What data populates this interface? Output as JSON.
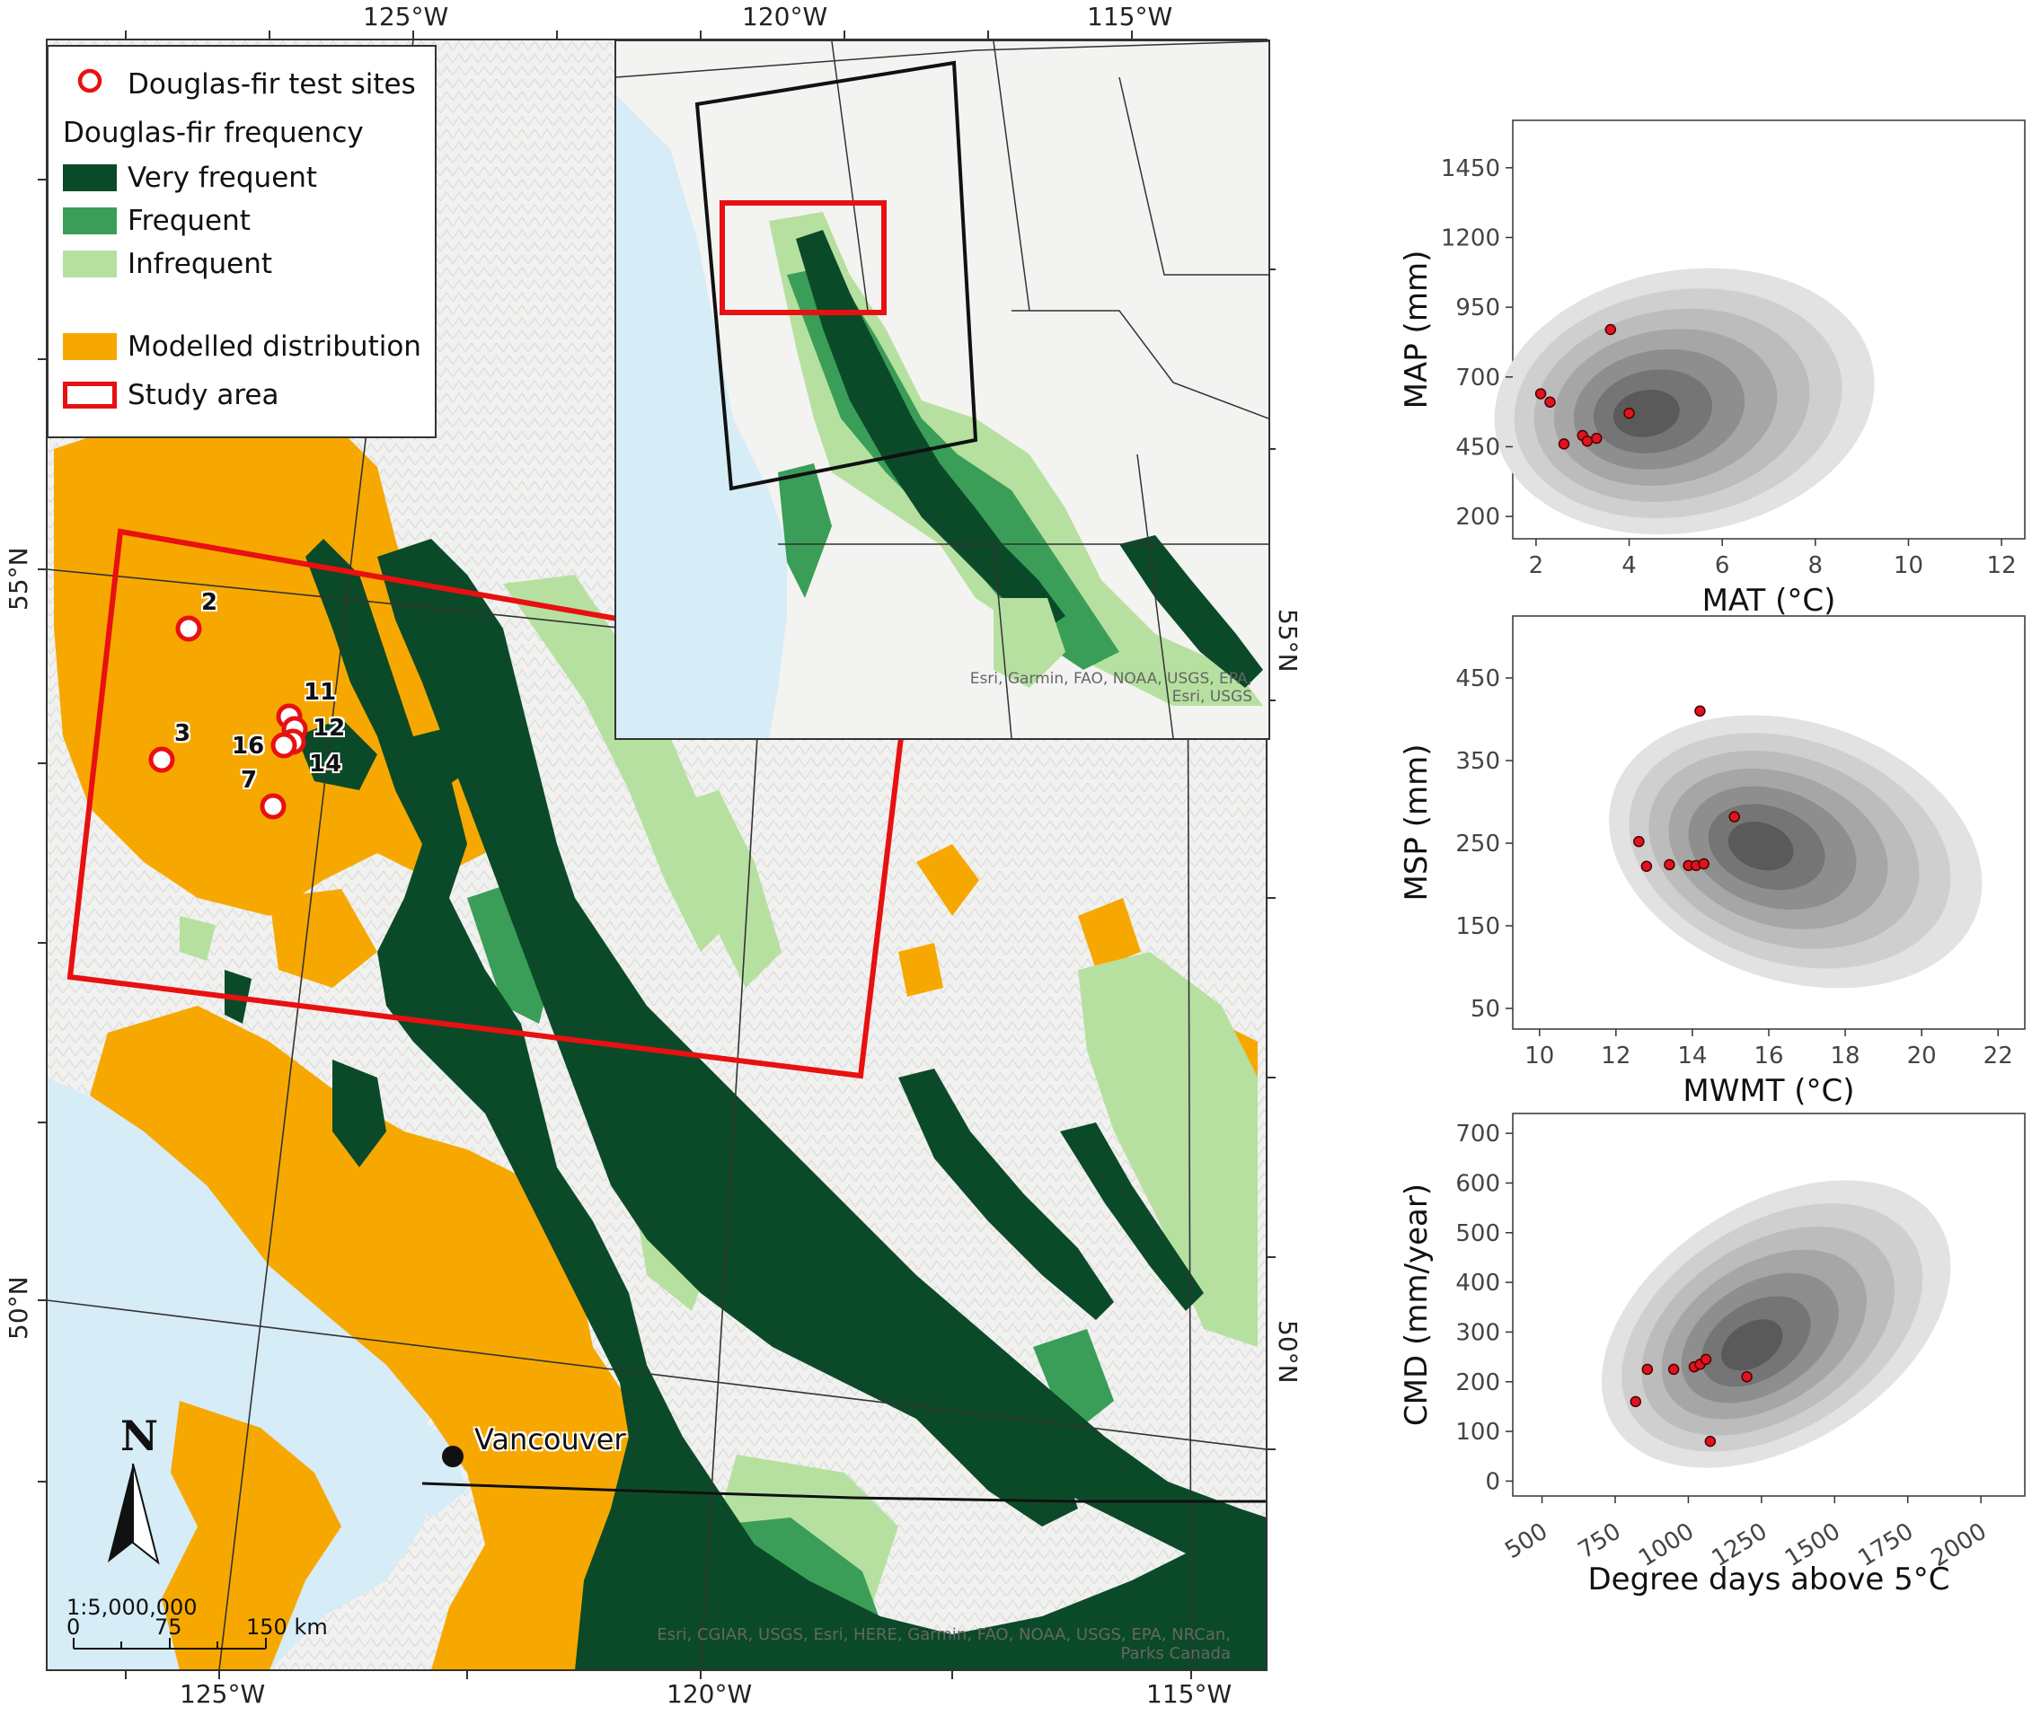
{
  "map": {
    "top_coords": [
      "125°W",
      "120°W",
      "115°W"
    ],
    "bottom_coords": [
      "125°W",
      "120°W",
      "115°W"
    ],
    "left_coords": [
      "55°N",
      "50°N"
    ],
    "right_coords": [
      "55°N",
      "50°N"
    ],
    "legend": {
      "test_sites": "Douglas-fir test sites",
      "frequency_title": "Douglas-fir frequency",
      "very_frequent": "Very frequent",
      "frequent": "Frequent",
      "infrequent": "Infrequent",
      "modelled": "Modelled distribution",
      "study_area": "Study area"
    },
    "colors": {
      "very_frequent": "#0b4a28",
      "frequent": "#3a9e58",
      "infrequent": "#b6e0a0",
      "modelled": "#f7a800",
      "study_area": "#e81010",
      "water": "#d6ecf6",
      "land": "#f1f1ef"
    },
    "sites": [
      "2",
      "3",
      "7",
      "11",
      "12",
      "14",
      "16"
    ],
    "city": "Vancouver",
    "north": "N",
    "scale": {
      "ratio": "1:5,000,000",
      "ticks": [
        "0",
        "75",
        "150 km"
      ]
    },
    "inset_attribution": [
      "Esri, Garmin, FAO, NOAA, USGS, EPA,",
      "Esri, USGS"
    ],
    "main_attribution": [
      "Esri, CGIAR, USGS, Esri, HERE, Garmin, FAO, NOAA, USGS, EPA, NRCan,",
      "Parks Canada"
    ],
    "icons": [
      "north-arrow-icon",
      "site-circle-icon",
      "city-dot-icon"
    ]
  },
  "chart_data": [
    {
      "type": "scatter",
      "overlay": "density-contours",
      "xlabel": "MAT (°C)",
      "ylabel": "MAP (mm)",
      "xlim": [
        1.5,
        12.5
      ],
      "ylim": [
        120,
        1620
      ],
      "xticks": [
        2,
        4,
        6,
        8,
        10,
        12
      ],
      "yticks": [
        200,
        450,
        700,
        950,
        1200,
        1450
      ],
      "density_peak": [
        4.2,
        560
      ],
      "points": [
        [
          2.1,
          640
        ],
        [
          2.3,
          610
        ],
        [
          2.6,
          460
        ],
        [
          3.0,
          490
        ],
        [
          3.1,
          470
        ],
        [
          3.3,
          480
        ],
        [
          3.6,
          870
        ],
        [
          4.0,
          570
        ]
      ]
    },
    {
      "type": "scatter",
      "overlay": "density-contours",
      "xlabel": "MWMT (°C)",
      "ylabel": "MSP (mm)",
      "xlim": [
        9.3,
        22.7
      ],
      "ylim": [
        25,
        525
      ],
      "xticks": [
        10,
        12,
        14,
        16,
        18,
        20,
        22
      ],
      "yticks": [
        50,
        150,
        250,
        350,
        450
      ],
      "density_peak": [
        15.6,
        248
      ],
      "points": [
        [
          12.6,
          252
        ],
        [
          12.8,
          222
        ],
        [
          13.4,
          224
        ],
        [
          13.9,
          223
        ],
        [
          14.1,
          223
        ],
        [
          14.3,
          225
        ],
        [
          14.2,
          410
        ],
        [
          15.1,
          282
        ]
      ]
    },
    {
      "type": "scatter",
      "overlay": "density-contours",
      "xlabel": "Degree days above 5°C",
      "ylabel": "CMD (mm/year)",
      "xlim": [
        400,
        2150
      ],
      "ylim": [
        -30,
        740
      ],
      "xticks": [
        500,
        750,
        1000,
        1250,
        1500,
        1750,
        2000
      ],
      "yticks": [
        0,
        100,
        200,
        300,
        400,
        500,
        600,
        700
      ],
      "density_peak": [
        1200,
        265
      ],
      "points": [
        [
          820,
          160
        ],
        [
          860,
          225
        ],
        [
          950,
          225
        ],
        [
          1020,
          230
        ],
        [
          1040,
          235
        ],
        [
          1060,
          245
        ],
        [
          1075,
          80
        ],
        [
          1200,
          210
        ]
      ]
    }
  ]
}
